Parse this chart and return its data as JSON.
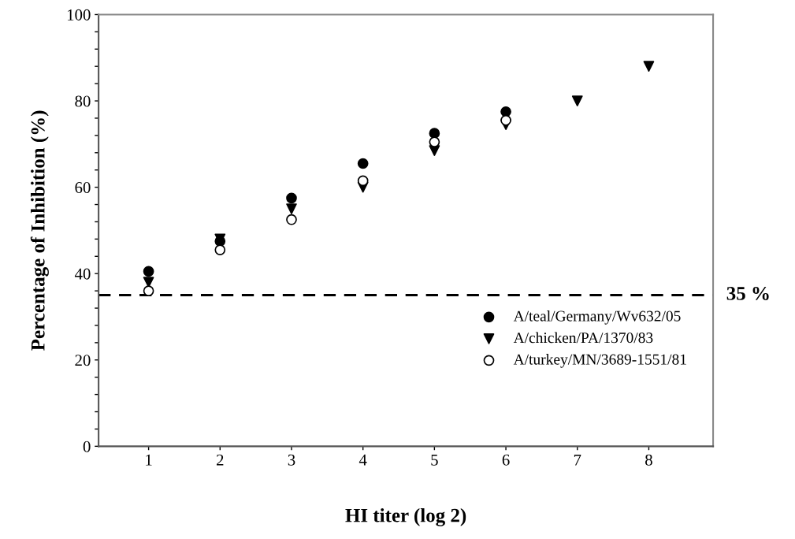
{
  "chart_data": {
    "type": "scatter",
    "xlabel": "HI titer (log 2)",
    "ylabel": "Percentage of Inhibition (%)",
    "xlim": [
      0.3,
      8.9
    ],
    "xticks": [
      1,
      2,
      3,
      4,
      5,
      6,
      7,
      8
    ],
    "ylim": [
      0,
      100
    ],
    "yticks": [
      0,
      {
        "value": 4,
        "label": null
      },
      {
        "value": 8,
        "label": null
      },
      {
        "value": 12,
        "label": null
      },
      {
        "value": 16,
        "label": null
      },
      20,
      {
        "value": 24,
        "label": null
      },
      {
        "value": 28,
        "label": null
      },
      {
        "value": 32,
        "label": null
      },
      {
        "value": 36,
        "label": null
      },
      40,
      {
        "value": 44,
        "label": null
      },
      {
        "value": 48,
        "label": null
      },
      {
        "value": 52,
        "label": null
      },
      {
        "value": 56,
        "label": null
      },
      60,
      {
        "value": 64,
        "label": null
      },
      {
        "value": 68,
        "label": null
      },
      {
        "value": 72,
        "label": null
      },
      {
        "value": 76,
        "label": null
      },
      80,
      {
        "value": 84,
        "label": null
      },
      {
        "value": 88,
        "label": null
      },
      {
        "value": 92,
        "label": null
      },
      {
        "value": 96,
        "label": null
      },
      100
    ],
    "grid": false,
    "legend": "bottom right",
    "ref_lines": [
      {
        "axis": "y",
        "value": 35,
        "label": "35 %",
        "color": "#000000",
        "line_style": "dashed"
      }
    ],
    "series": [
      {
        "name": "A/teal/Germany/Wv632/05",
        "color": "#000000",
        "marker": "circle",
        "x": [
          1,
          2,
          3,
          4,
          5,
          6
        ],
        "values": [
          40.5,
          47.5,
          57.5,
          65.5,
          72.5,
          77.5
        ]
      },
      {
        "name": "A/chicken/PA/1370/83",
        "color": "#000000",
        "marker": "triangle",
        "x": [
          1,
          2,
          3,
          4,
          5,
          6,
          7,
          8
        ],
        "values": [
          38,
          48,
          55,
          60,
          68.5,
          74.5,
          80,
          88
        ]
      },
      {
        "name": "A/turkey/MN/3689-1551/81",
        "color": "#ffffff",
        "marker": "open circle",
        "x": [
          1,
          2,
          3,
          4,
          5,
          6
        ],
        "values": [
          36,
          45.5,
          52.5,
          61.5,
          70.5,
          75.5
        ]
      }
    ]
  }
}
